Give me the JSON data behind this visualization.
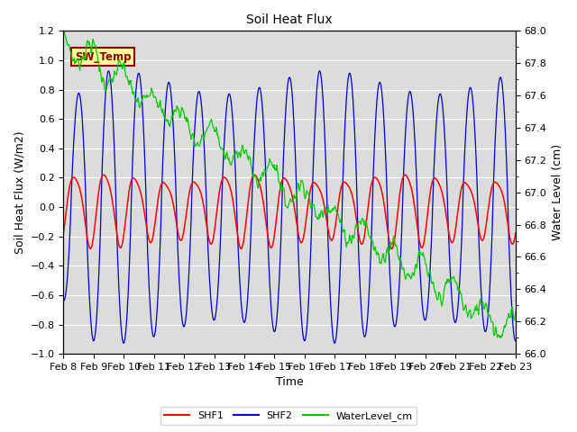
{
  "title": "Soil Heat Flux",
  "xlabel": "Time",
  "ylabel_left": "Soil Heat Flux (W/m2)",
  "ylabel_right": "Water Level (cm)",
  "ylim_left": [
    -1.0,
    1.2
  ],
  "ylim_right": [
    66.0,
    68.0
  ],
  "xtick_labels": [
    "Feb 8",
    "Feb 9",
    "Feb 10",
    "Feb 11",
    "Feb 12",
    "Feb 13",
    "Feb 14",
    "Feb 15",
    "Feb 16",
    "Feb 17",
    "Feb 18",
    "Feb 19",
    "Feb 20",
    "Feb 21",
    "Feb 22",
    "Feb 23"
  ],
  "yticks_left": [
    -1.0,
    -0.8,
    -0.6,
    -0.4,
    -0.2,
    0.0,
    0.2,
    0.4,
    0.6,
    0.8,
    1.0,
    1.2
  ],
  "yticks_right": [
    66.0,
    66.2,
    66.4,
    66.6,
    66.8,
    67.0,
    67.2,
    67.4,
    67.6,
    67.8,
    68.0
  ],
  "shf1_color": "#FF0000",
  "shf2_color": "#0000CC",
  "water_color": "#00CC00",
  "bg_color": "#DCDCDC",
  "annotation_text": "SW_Temp",
  "annotation_bg": "#FFFF99",
  "annotation_border": "#8B0000",
  "annotation_text_color": "#8B0000",
  "title_fontsize": 10,
  "label_fontsize": 9,
  "tick_fontsize": 8
}
